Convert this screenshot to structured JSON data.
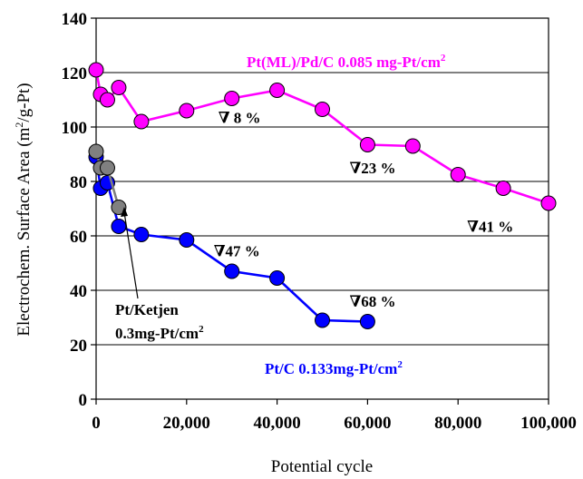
{
  "chart_data": {
    "type": "line",
    "xlabel": "Potential cycle",
    "ylabel_main": "Electrochem. Surface Area (m",
    "ylabel_sup": "2",
    "ylabel_end": "/g-Pt)",
    "xlim": [
      0,
      100000
    ],
    "ylim": [
      0,
      140
    ],
    "xticks": [
      0,
      20000,
      40000,
      60000,
      80000,
      100000
    ],
    "xtick_labels": [
      "0",
      "20,000",
      "40,000",
      "60,000",
      "80,000",
      "100,000"
    ],
    "yticks": [
      0,
      20,
      40,
      60,
      80,
      100,
      120,
      140
    ],
    "ytick_labels": [
      "0",
      "20",
      "40",
      "60",
      "80",
      "100",
      "120",
      "140"
    ],
    "grid": "horizontal",
    "series": [
      {
        "name": "Pt(ML)/Pd/C 0.085 mg-Pt/cm2",
        "color": "#ff00ff",
        "x": [
          0,
          1000,
          2500,
          5000,
          10000,
          20000,
          30000,
          40000,
          50000,
          60000,
          70000,
          80000,
          90000,
          100000
        ],
        "y": [
          121,
          112,
          110,
          114.5,
          102,
          106,
          110.5,
          113.5,
          106.5,
          93.5,
          93,
          82.5,
          77.5,
          72
        ]
      },
      {
        "name": "Pt/Ketjen 0.3mg-Pt/cm2",
        "color": "#808080",
        "x": [
          0,
          1000,
          2500,
          5000
        ],
        "y": [
          91,
          85,
          85,
          70.5
        ]
      },
      {
        "name": "Pt/C 0.133mg-Pt/cm2",
        "color": "#0000ff",
        "x": [
          0,
          1000,
          2500,
          5000,
          10000,
          20000,
          30000,
          40000,
          50000,
          60000
        ],
        "y": [
          89,
          77.5,
          79.5,
          63.5,
          60.5,
          58.5,
          47,
          44.5,
          29,
          28.5
        ]
      }
    ],
    "annotations": [
      {
        "text": "∇ 8 %",
        "x": 27000,
        "y": 101.5
      },
      {
        "text": "∇23 %",
        "x": 56000,
        "y": 83
      },
      {
        "text": "∇41 %",
        "x": 82000,
        "y": 61.5
      },
      {
        "text": "∇47 %",
        "x": 26000,
        "y": 52.5
      },
      {
        "text": "∇68 %",
        "x": 56000,
        "y": 34
      }
    ],
    "labels": {
      "ptml_main": "Pt(ML)/Pd/C  0.085 mg-Pt/cm",
      "ptml_sup": "2",
      "ketjen_line1": "Pt/Ketjen",
      "ketjen_line2_main": "0.3mg-Pt/cm",
      "ketjen_line2_sup": "2",
      "ptc_main": "Pt/C  0.133mg-Pt/cm",
      "ptc_sup": "2"
    }
  }
}
